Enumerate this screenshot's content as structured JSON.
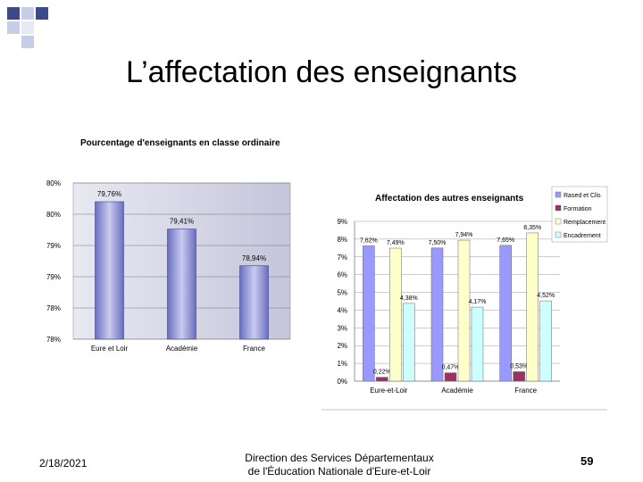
{
  "slide": {
    "title": "L’affectation des enseignants",
    "footer_date": "2/18/2021",
    "footer_line1": "Direction des Services Départementaux",
    "footer_line2": "de l'Éducation Nationale d'Eure-et-Loir",
    "page_number": "59",
    "colors": {
      "deco_dark": "#3c4a8a",
      "deco_light": "#c7cde6"
    }
  },
  "chart_data": [
    {
      "type": "bar",
      "title": "Pourcentage d'enseignants en classe ordinaire",
      "categories": [
        "Eure et Loir",
        "Académie",
        "France"
      ],
      "values": [
        79.76,
        79.41,
        78.94
      ],
      "value_labels": [
        "79,76%",
        "79,41%",
        "78,94%"
      ],
      "y_ticks": [
        "78%",
        "78%",
        "79%",
        "79%",
        "80%",
        "80%"
      ],
      "ylim": [
        78,
        80
      ],
      "series_color": "#8a8fd0",
      "plot_background": "#d9d9e8"
    },
    {
      "type": "bar",
      "title": "Affectation des autres enseignants",
      "categories": [
        "Eure-et-Loir",
        "Académie",
        "France"
      ],
      "series": [
        {
          "name": "Rased et Clis",
          "values": [
            7.62,
            7.5,
            7.65
          ],
          "labels": [
            "7,62%",
            "7,50%",
            "7,65%"
          ],
          "color": "#9999ff"
        },
        {
          "name": "Formation",
          "values": [
            0.22,
            0.47,
            0.53
          ],
          "labels": [
            "0,22%",
            "0,47%",
            "0,53%"
          ],
          "color": "#993366"
        },
        {
          "name": "Remplacement",
          "values": [
            7.49,
            7.94,
            8.35
          ],
          "labels": [
            "7,49%",
            "7,94%",
            "8,35%"
          ],
          "color": "#ffffcc"
        },
        {
          "name": "Encadrement",
          "values": [
            4.38,
            4.17,
            4.52
          ],
          "labels": [
            "4,38%",
            "4,17%",
            "4,52%"
          ],
          "color": "#ccffff"
        }
      ],
      "y_ticks": [
        "0%",
        "1%",
        "2%",
        "3%",
        "4%",
        "5%",
        "6%",
        "7%",
        "8%",
        "9%"
      ],
      "ylim": [
        0,
        9
      ],
      "legend_position": "right"
    }
  ]
}
